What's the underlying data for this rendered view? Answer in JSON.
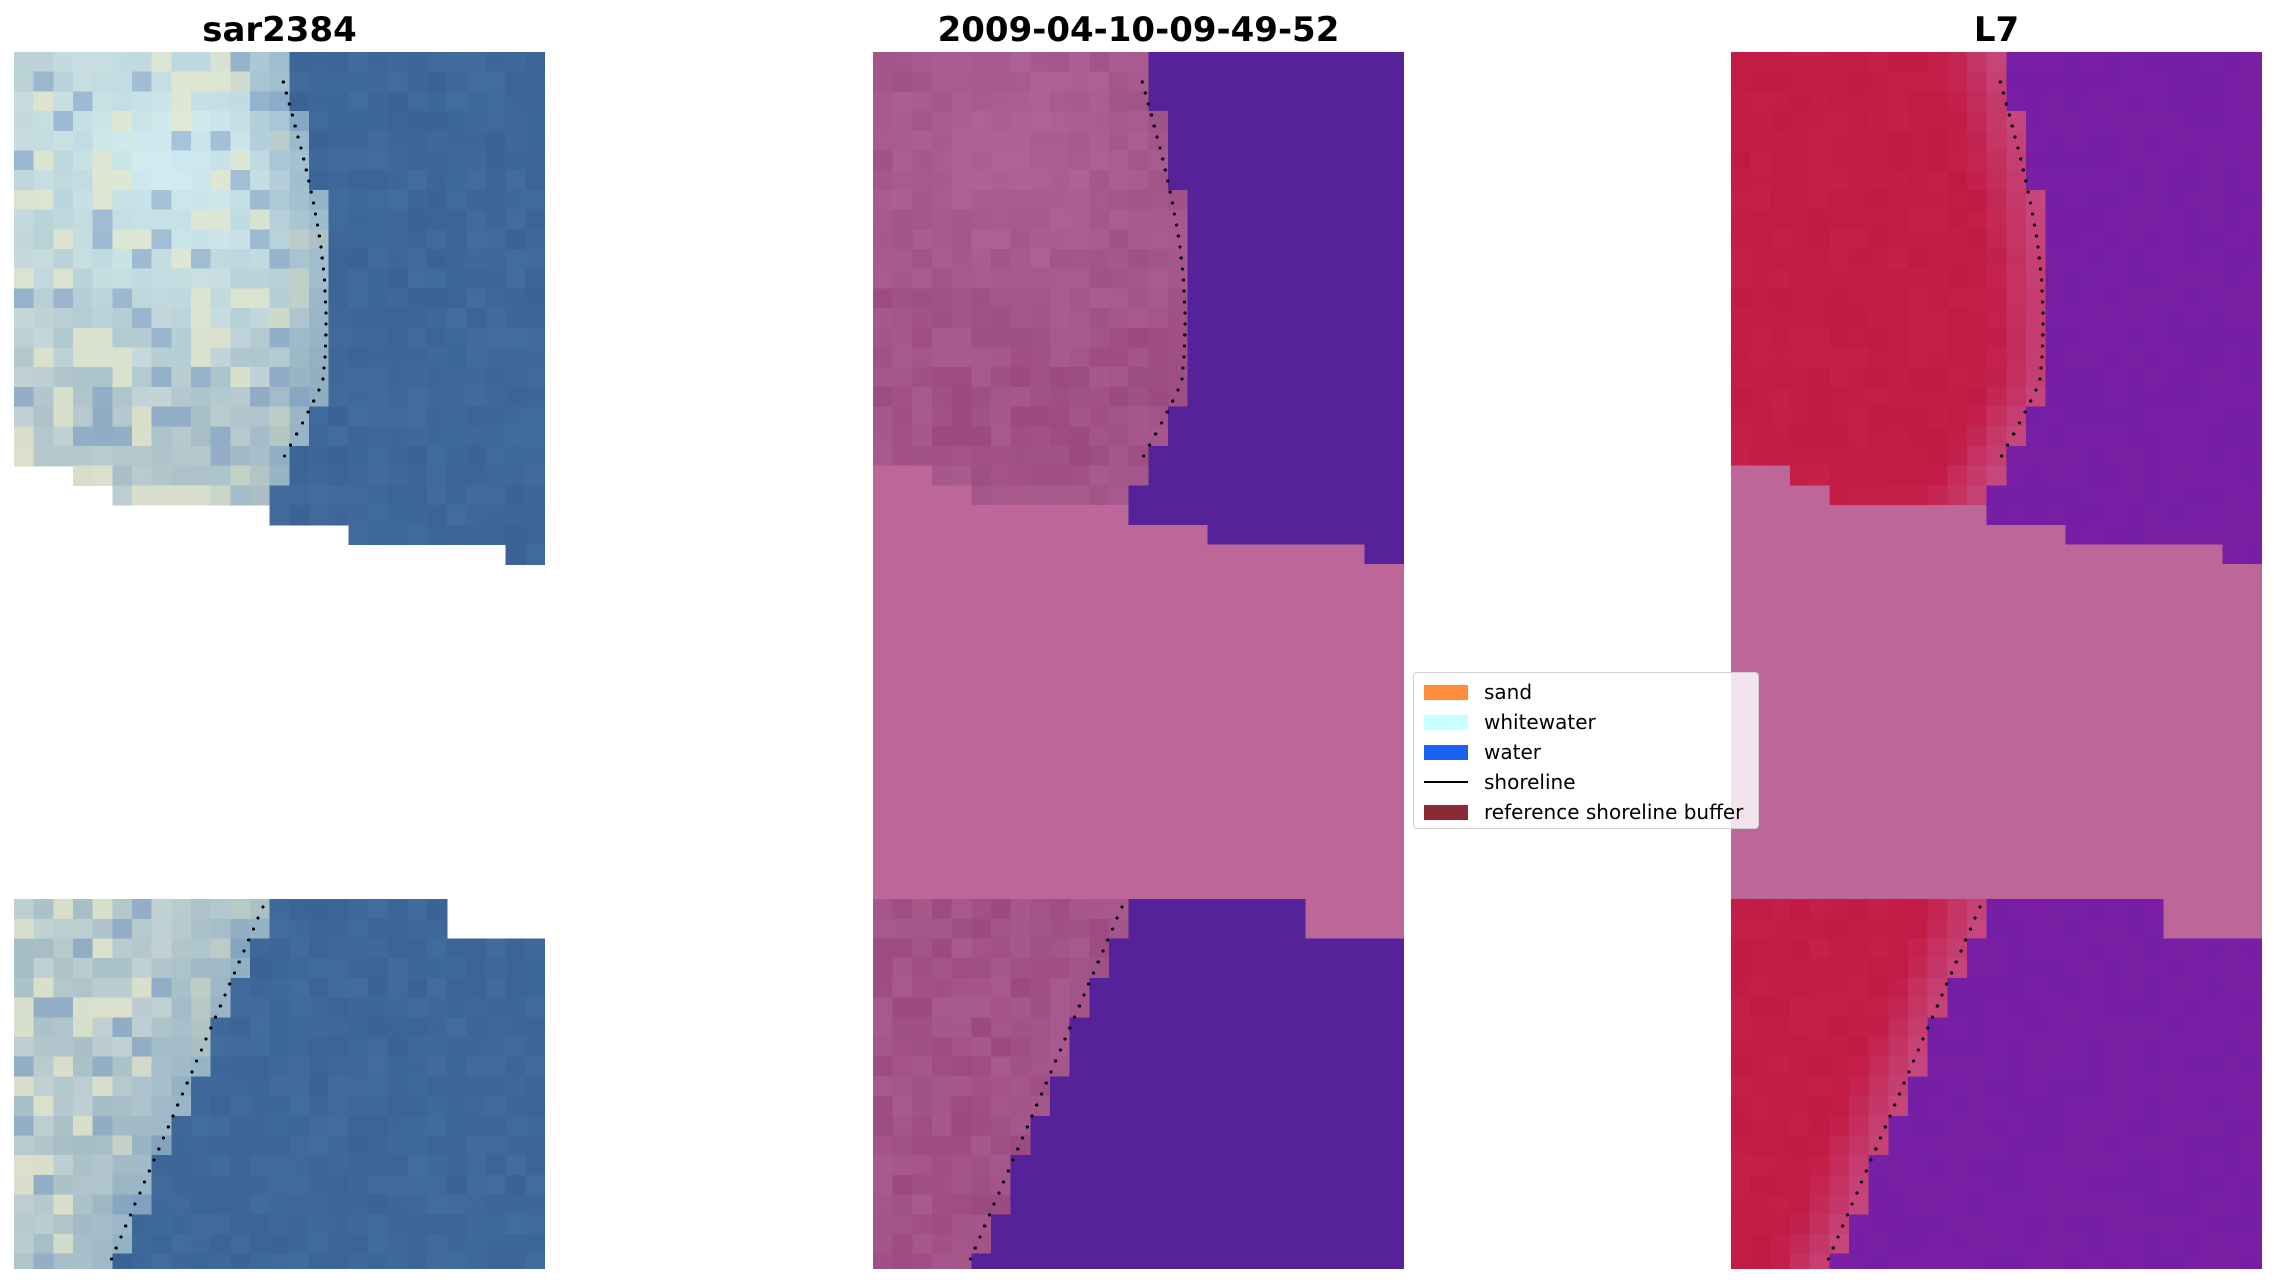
{
  "panels": [
    {
      "title": "sar2384",
      "mode": "rgb"
    },
    {
      "title": "2009-04-10-09-49-52",
      "mode": "classified"
    },
    {
      "title": "L7",
      "mode": "index"
    }
  ],
  "legend": {
    "items": [
      {
        "label": "sand",
        "color": "#ff8c3a",
        "kind": "patch"
      },
      {
        "label": "whitewater",
        "color": "#c8ffff",
        "kind": "patch"
      },
      {
        "label": "water",
        "color": "#1c62f0",
        "kind": "patch"
      },
      {
        "label": "shoreline",
        "color": "#000000",
        "kind": "line"
      },
      {
        "label": "reference shoreline buffer",
        "color": "#8b2a35",
        "kind": "patch"
      }
    ]
  },
  "colors": {
    "nodata_pink": "#bc6797",
    "water_purple": "#55229a",
    "land_mauve": "#9a4a80",
    "buffer_red": "#b8354f",
    "sea_blue": "#3b6396",
    "index_red": "#c11a44",
    "index_purple": "#7a1fa3",
    "shoreline": "#000000"
  }
}
